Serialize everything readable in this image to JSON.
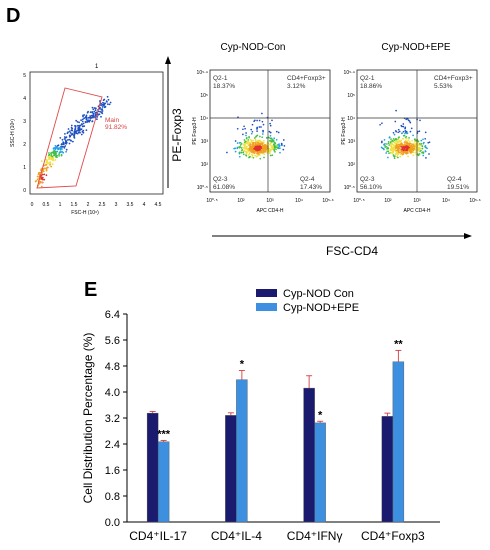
{
  "panel_d": {
    "letter": "D",
    "scatter": {
      "title": "1",
      "xlabel": "FSC-H (10⁶)",
      "ylabel": "SSC-H (10⁶)",
      "x_ticks": [
        "0",
        "0.5",
        "1",
        "1.5",
        "2",
        "2.5",
        "3",
        "3.5",
        "4",
        "4.5"
      ],
      "y_ticks": [
        "0",
        "1",
        "2",
        "3",
        "4",
        "5"
      ],
      "gate_name": "Main",
      "gate_percent": "91.82%"
    },
    "flow_plots": [
      {
        "title": "Cyp-NOD-Con",
        "ylabel": "PE Foxp3-H",
        "xlabel": "APC CD4-H",
        "quadrants": {
          "q1_name": "Q2-1",
          "q1_value": "18.37%",
          "q2_name": "CD4+Foxp3+",
          "q2_value": "3.12%",
          "q3_name": "Q2-3",
          "q3_value": "61.08%",
          "q4_name": "Q2-4",
          "q4_value": "17.43%"
        }
      },
      {
        "title": "Cyp-NOD+EPE",
        "ylabel": "PE Foxp3-H",
        "xlabel": "APC CD4-H",
        "quadrants": {
          "q1_name": "Q2-1",
          "q1_value": "18.86%",
          "q2_name": "CD4+Foxp3+",
          "q2_value": "5.53%",
          "q3_name": "Q2-3",
          "q3_value": "56.10%",
          "q4_name": "Q2-4",
          "q4_value": "19.51%"
        }
      }
    ],
    "log_x_ticks": [
      "10⁰·⁵",
      "10²",
      "10³",
      "10⁴",
      "10⁵·⁶"
    ],
    "log_y_ticks": [
      "10⁵·⁹",
      "10⁵",
      "10⁴",
      "10³",
      "10²",
      "10⁰·⁵"
    ],
    "side_axis_label": "PE-Foxp3",
    "bottom_axis_label": "FSC-CD4"
  },
  "panel_e": {
    "letter": "E"
  },
  "chart_data": {
    "type": "bar",
    "title": "",
    "xlabel": "",
    "ylabel": "Cell Distribution Percentage (%)",
    "ylim": [
      0,
      6.4
    ],
    "y_ticks": [
      "0.0",
      "0.8",
      "1.6",
      "2.4",
      "3.2",
      "4.0",
      "4.8",
      "5.6",
      "6.4"
    ],
    "categories": [
      "CD4⁺IL-17",
      "CD4⁺IL-4",
      "CD4⁺IFNγ",
      "CD4⁺Foxp3"
    ],
    "series": [
      {
        "name": "Cyp-NOD Con",
        "color": "#1a1a6e",
        "values": [
          3.35,
          3.28,
          4.12,
          3.25
        ],
        "errors": [
          0.05,
          0.08,
          0.38,
          0.1
        ]
      },
      {
        "name": "Cyp-NOD+EPE",
        "color": "#3d8fe0",
        "values": [
          2.47,
          4.38,
          3.05,
          4.93
        ],
        "errors": [
          0.04,
          0.28,
          0.05,
          0.35
        ]
      }
    ],
    "significance": [
      "***",
      "*",
      "*",
      "**"
    ],
    "legend_position": "top-center",
    "grid": false
  }
}
